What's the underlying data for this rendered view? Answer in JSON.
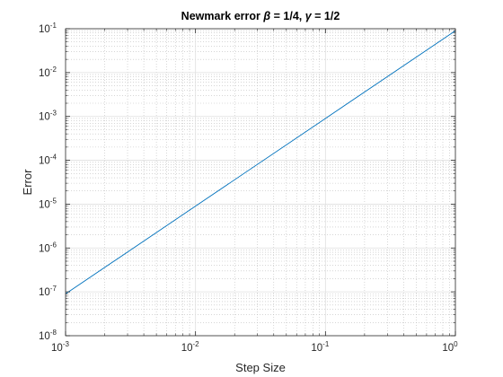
{
  "chart_data": {
    "type": "line",
    "title": "Newmark error β = 1/4, γ = 1/2",
    "title_parts": [
      "Newmark error ",
      "β",
      " = 1/4, ",
      "γ",
      " = 1/2"
    ],
    "xlabel": "Step Size",
    "ylabel": "Error",
    "xscale": "log",
    "yscale": "log",
    "xlim": [
      0.001,
      1
    ],
    "ylim": [
      1e-08,
      0.1
    ],
    "grid": true,
    "minor_grid": true,
    "x_ticks": [
      {
        "base": "10",
        "exp": "-3"
      },
      {
        "base": "10",
        "exp": "-2"
      },
      {
        "base": "10",
        "exp": "-1"
      },
      {
        "base": "10",
        "exp": "0"
      }
    ],
    "y_ticks": [
      {
        "base": "10",
        "exp": "-8"
      },
      {
        "base": "10",
        "exp": "-7"
      },
      {
        "base": "10",
        "exp": "-6"
      },
      {
        "base": "10",
        "exp": "-5"
      },
      {
        "base": "10",
        "exp": "-4"
      },
      {
        "base": "10",
        "exp": "-3"
      },
      {
        "base": "10",
        "exp": "-2"
      },
      {
        "base": "10",
        "exp": "-1"
      }
    ],
    "series": [
      {
        "color": "#0072BD",
        "x": [
          0.001,
          0.01,
          0.1,
          1
        ],
        "y": [
          9e-08,
          9e-06,
          0.0009,
          0.09
        ]
      }
    ]
  }
}
